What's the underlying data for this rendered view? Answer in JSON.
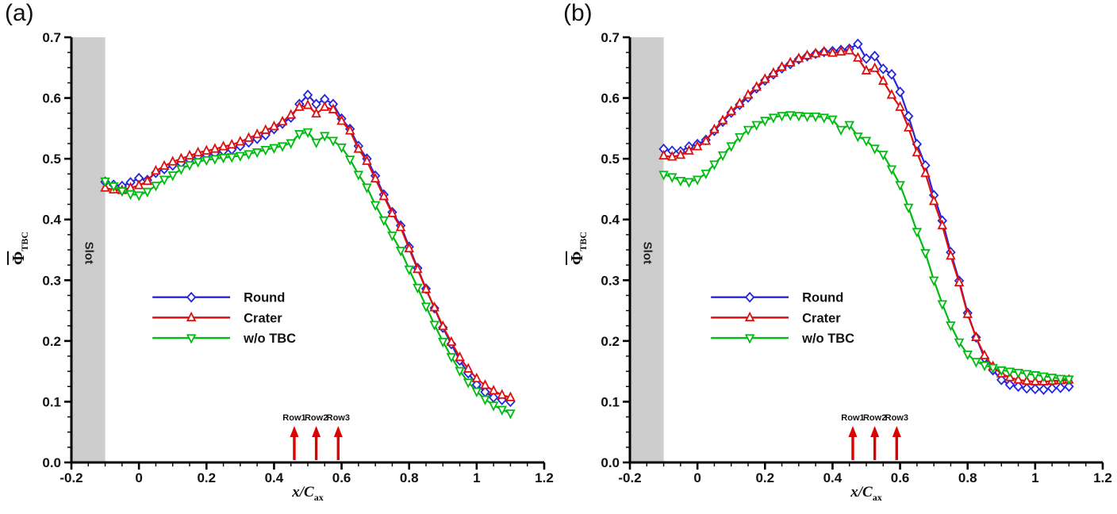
{
  "chart_data": [
    {
      "type": "line",
      "panel_label": "(a)",
      "x_axis": {
        "label_main": "x/C",
        "label_sub": "ax",
        "min": -0.2,
        "max": 1.2,
        "minor_step": 0.05,
        "major_ticks": [
          -0.2,
          0,
          0.2,
          0.4,
          0.6,
          0.8,
          1,
          1.2
        ],
        "tick_labels": [
          "-0.2",
          "0",
          "0.2",
          "0.4",
          "0.6",
          "0.8",
          "1",
          "1.2"
        ]
      },
      "y_axis": {
        "label_main": "Φ",
        "label_sub": "TBC",
        "overline": true,
        "min": 0,
        "max": 0.7,
        "minor_step": 0.025,
        "major_ticks": [
          0,
          0.1,
          0.2,
          0.3,
          0.4,
          0.5,
          0.6,
          0.7
        ],
        "tick_labels": [
          "0.0",
          "0.1",
          "0.2",
          "0.3",
          "0.4",
          "0.5",
          "0.6",
          "0.7"
        ]
      },
      "slot": {
        "label": "Slot",
        "x_from": -0.2,
        "x_to": -0.1,
        "color": "#cdcdcd"
      },
      "row_arrows": {
        "labels": [
          "Row1",
          "Row2",
          "Row3"
        ],
        "x": [
          0.46,
          0.525,
          0.59
        ],
        "color": "#dd0000"
      },
      "x": [
        -0.1,
        -0.075,
        -0.05,
        -0.025,
        0,
        0.025,
        0.05,
        0.075,
        0.1,
        0.125,
        0.15,
        0.175,
        0.2,
        0.225,
        0.25,
        0.275,
        0.3,
        0.325,
        0.35,
        0.375,
        0.4,
        0.425,
        0.45,
        0.475,
        0.5,
        0.525,
        0.55,
        0.575,
        0.6,
        0.625,
        0.65,
        0.675,
        0.7,
        0.725,
        0.75,
        0.775,
        0.8,
        0.825,
        0.85,
        0.875,
        0.9,
        0.925,
        0.95,
        0.975,
        1.0,
        1.025,
        1.05,
        1.075,
        1.1
      ],
      "series": [
        {
          "name": "Round",
          "color": "#2626dd",
          "marker": "diamond",
          "values": [
            0.462,
            0.457,
            0.455,
            0.461,
            0.468,
            0.465,
            0.477,
            0.483,
            0.489,
            0.493,
            0.499,
            0.504,
            0.507,
            0.509,
            0.513,
            0.515,
            0.521,
            0.527,
            0.533,
            0.539,
            0.549,
            0.558,
            0.568,
            0.59,
            0.605,
            0.59,
            0.598,
            0.59,
            0.566,
            0.549,
            0.521,
            0.5,
            0.472,
            0.441,
            0.412,
            0.39,
            0.355,
            0.32,
            0.286,
            0.254,
            0.222,
            0.195,
            0.168,
            0.147,
            0.128,
            0.116,
            0.107,
            0.103,
            0.1
          ]
        },
        {
          "name": "Crater",
          "color": "#dd0f0f",
          "marker": "triangle-up",
          "values": [
            0.452,
            0.449,
            0.448,
            0.452,
            0.456,
            0.463,
            0.48,
            0.488,
            0.495,
            0.5,
            0.505,
            0.51,
            0.513,
            0.516,
            0.52,
            0.523,
            0.528,
            0.534,
            0.54,
            0.547,
            0.553,
            0.561,
            0.572,
            0.585,
            0.588,
            0.574,
            0.585,
            0.581,
            0.562,
            0.546,
            0.516,
            0.496,
            0.467,
            0.438,
            0.41,
            0.387,
            0.352,
            0.318,
            0.285,
            0.255,
            0.224,
            0.198,
            0.173,
            0.154,
            0.138,
            0.127,
            0.118,
            0.111,
            0.107
          ]
        },
        {
          "name": "w/o TBC",
          "color": "#00bb11",
          "marker": "triangle-down",
          "values": [
            0.463,
            0.455,
            0.447,
            0.442,
            0.44,
            0.446,
            0.456,
            0.466,
            0.473,
            0.483,
            0.49,
            0.495,
            0.498,
            0.5,
            0.502,
            0.503,
            0.505,
            0.508,
            0.511,
            0.515,
            0.518,
            0.521,
            0.526,
            0.541,
            0.544,
            0.527,
            0.538,
            0.53,
            0.519,
            0.499,
            0.474,
            0.453,
            0.424,
            0.399,
            0.374,
            0.349,
            0.318,
            0.288,
            0.257,
            0.227,
            0.199,
            0.174,
            0.151,
            0.132,
            0.117,
            0.104,
            0.094,
            0.087,
            0.081
          ]
        }
      ]
    },
    {
      "type": "line",
      "panel_label": "(b)",
      "x_axis": {
        "label_main": "x/C",
        "label_sub": "ax",
        "min": -0.2,
        "max": 1.2,
        "minor_step": 0.05,
        "major_ticks": [
          -0.2,
          0,
          0.2,
          0.4,
          0.6,
          0.8,
          1,
          1.2
        ],
        "tick_labels": [
          "-0.2",
          "0",
          "0.2",
          "0.4",
          "0.6",
          "0.8",
          "1",
          "1.2"
        ]
      },
      "y_axis": {
        "label_main": "Φ",
        "label_sub": "TBC",
        "overline": true,
        "min": 0,
        "max": 0.7,
        "minor_step": 0.025,
        "major_ticks": [
          0,
          0.1,
          0.2,
          0.3,
          0.4,
          0.5,
          0.6,
          0.7
        ],
        "tick_labels": [
          "0.0",
          "0.1",
          "0.2",
          "0.3",
          "0.4",
          "0.5",
          "0.6",
          "0.7"
        ]
      },
      "slot": {
        "label": "Slot",
        "x_from": -0.2,
        "x_to": -0.1,
        "color": "#cdcdcd"
      },
      "row_arrows": {
        "labels": [
          "Row1",
          "Row2",
          "Row3"
        ],
        "x": [
          0.46,
          0.525,
          0.59
        ],
        "color": "#dd0000"
      },
      "x": [
        -0.1,
        -0.075,
        -0.05,
        -0.025,
        0,
        0.025,
        0.05,
        0.075,
        0.1,
        0.125,
        0.15,
        0.175,
        0.2,
        0.225,
        0.25,
        0.275,
        0.3,
        0.325,
        0.35,
        0.375,
        0.4,
        0.425,
        0.45,
        0.475,
        0.5,
        0.525,
        0.55,
        0.575,
        0.6,
        0.625,
        0.65,
        0.675,
        0.7,
        0.725,
        0.75,
        0.775,
        0.8,
        0.825,
        0.85,
        0.875,
        0.9,
        0.925,
        0.95,
        0.975,
        1.0,
        1.025,
        1.05,
        1.075,
        1.1
      ],
      "series": [
        {
          "name": "Round",
          "color": "#2626dd",
          "marker": "diamond",
          "values": [
            0.516,
            0.513,
            0.512,
            0.52,
            0.524,
            0.531,
            0.546,
            0.561,
            0.576,
            0.589,
            0.601,
            0.616,
            0.629,
            0.639,
            0.649,
            0.656,
            0.664,
            0.669,
            0.673,
            0.676,
            0.677,
            0.679,
            0.681,
            0.689,
            0.665,
            0.669,
            0.648,
            0.639,
            0.61,
            0.57,
            0.524,
            0.489,
            0.44,
            0.398,
            0.346,
            0.299,
            0.246,
            0.206,
            0.172,
            0.152,
            0.136,
            0.128,
            0.125,
            0.122,
            0.121,
            0.12,
            0.122,
            0.123,
            0.125
          ]
        },
        {
          "name": "Crater",
          "color": "#dd0f0f",
          "marker": "triangle-up",
          "values": [
            0.505,
            0.503,
            0.506,
            0.513,
            0.52,
            0.529,
            0.548,
            0.563,
            0.578,
            0.591,
            0.605,
            0.618,
            0.631,
            0.641,
            0.651,
            0.658,
            0.665,
            0.67,
            0.673,
            0.676,
            0.674,
            0.676,
            0.678,
            0.666,
            0.645,
            0.649,
            0.628,
            0.605,
            0.585,
            0.551,
            0.51,
            0.476,
            0.43,
            0.39,
            0.34,
            0.296,
            0.244,
            0.206,
            0.176,
            0.158,
            0.146,
            0.14,
            0.136,
            0.134,
            0.133,
            0.133,
            0.134,
            0.135,
            0.136
          ]
        },
        {
          "name": "w/o TBC",
          "color": "#00bb11",
          "marker": "triangle-down",
          "values": [
            0.474,
            0.47,
            0.464,
            0.462,
            0.466,
            0.476,
            0.491,
            0.506,
            0.521,
            0.536,
            0.548,
            0.556,
            0.563,
            0.568,
            0.571,
            0.572,
            0.571,
            0.57,
            0.57,
            0.568,
            0.565,
            0.548,
            0.556,
            0.537,
            0.53,
            0.517,
            0.507,
            0.483,
            0.457,
            0.42,
            0.38,
            0.345,
            0.3,
            0.261,
            0.226,
            0.198,
            0.178,
            0.166,
            0.16,
            0.156,
            0.152,
            0.15,
            0.148,
            0.146,
            0.144,
            0.142,
            0.14,
            0.138,
            0.137
          ]
        }
      ]
    }
  ]
}
